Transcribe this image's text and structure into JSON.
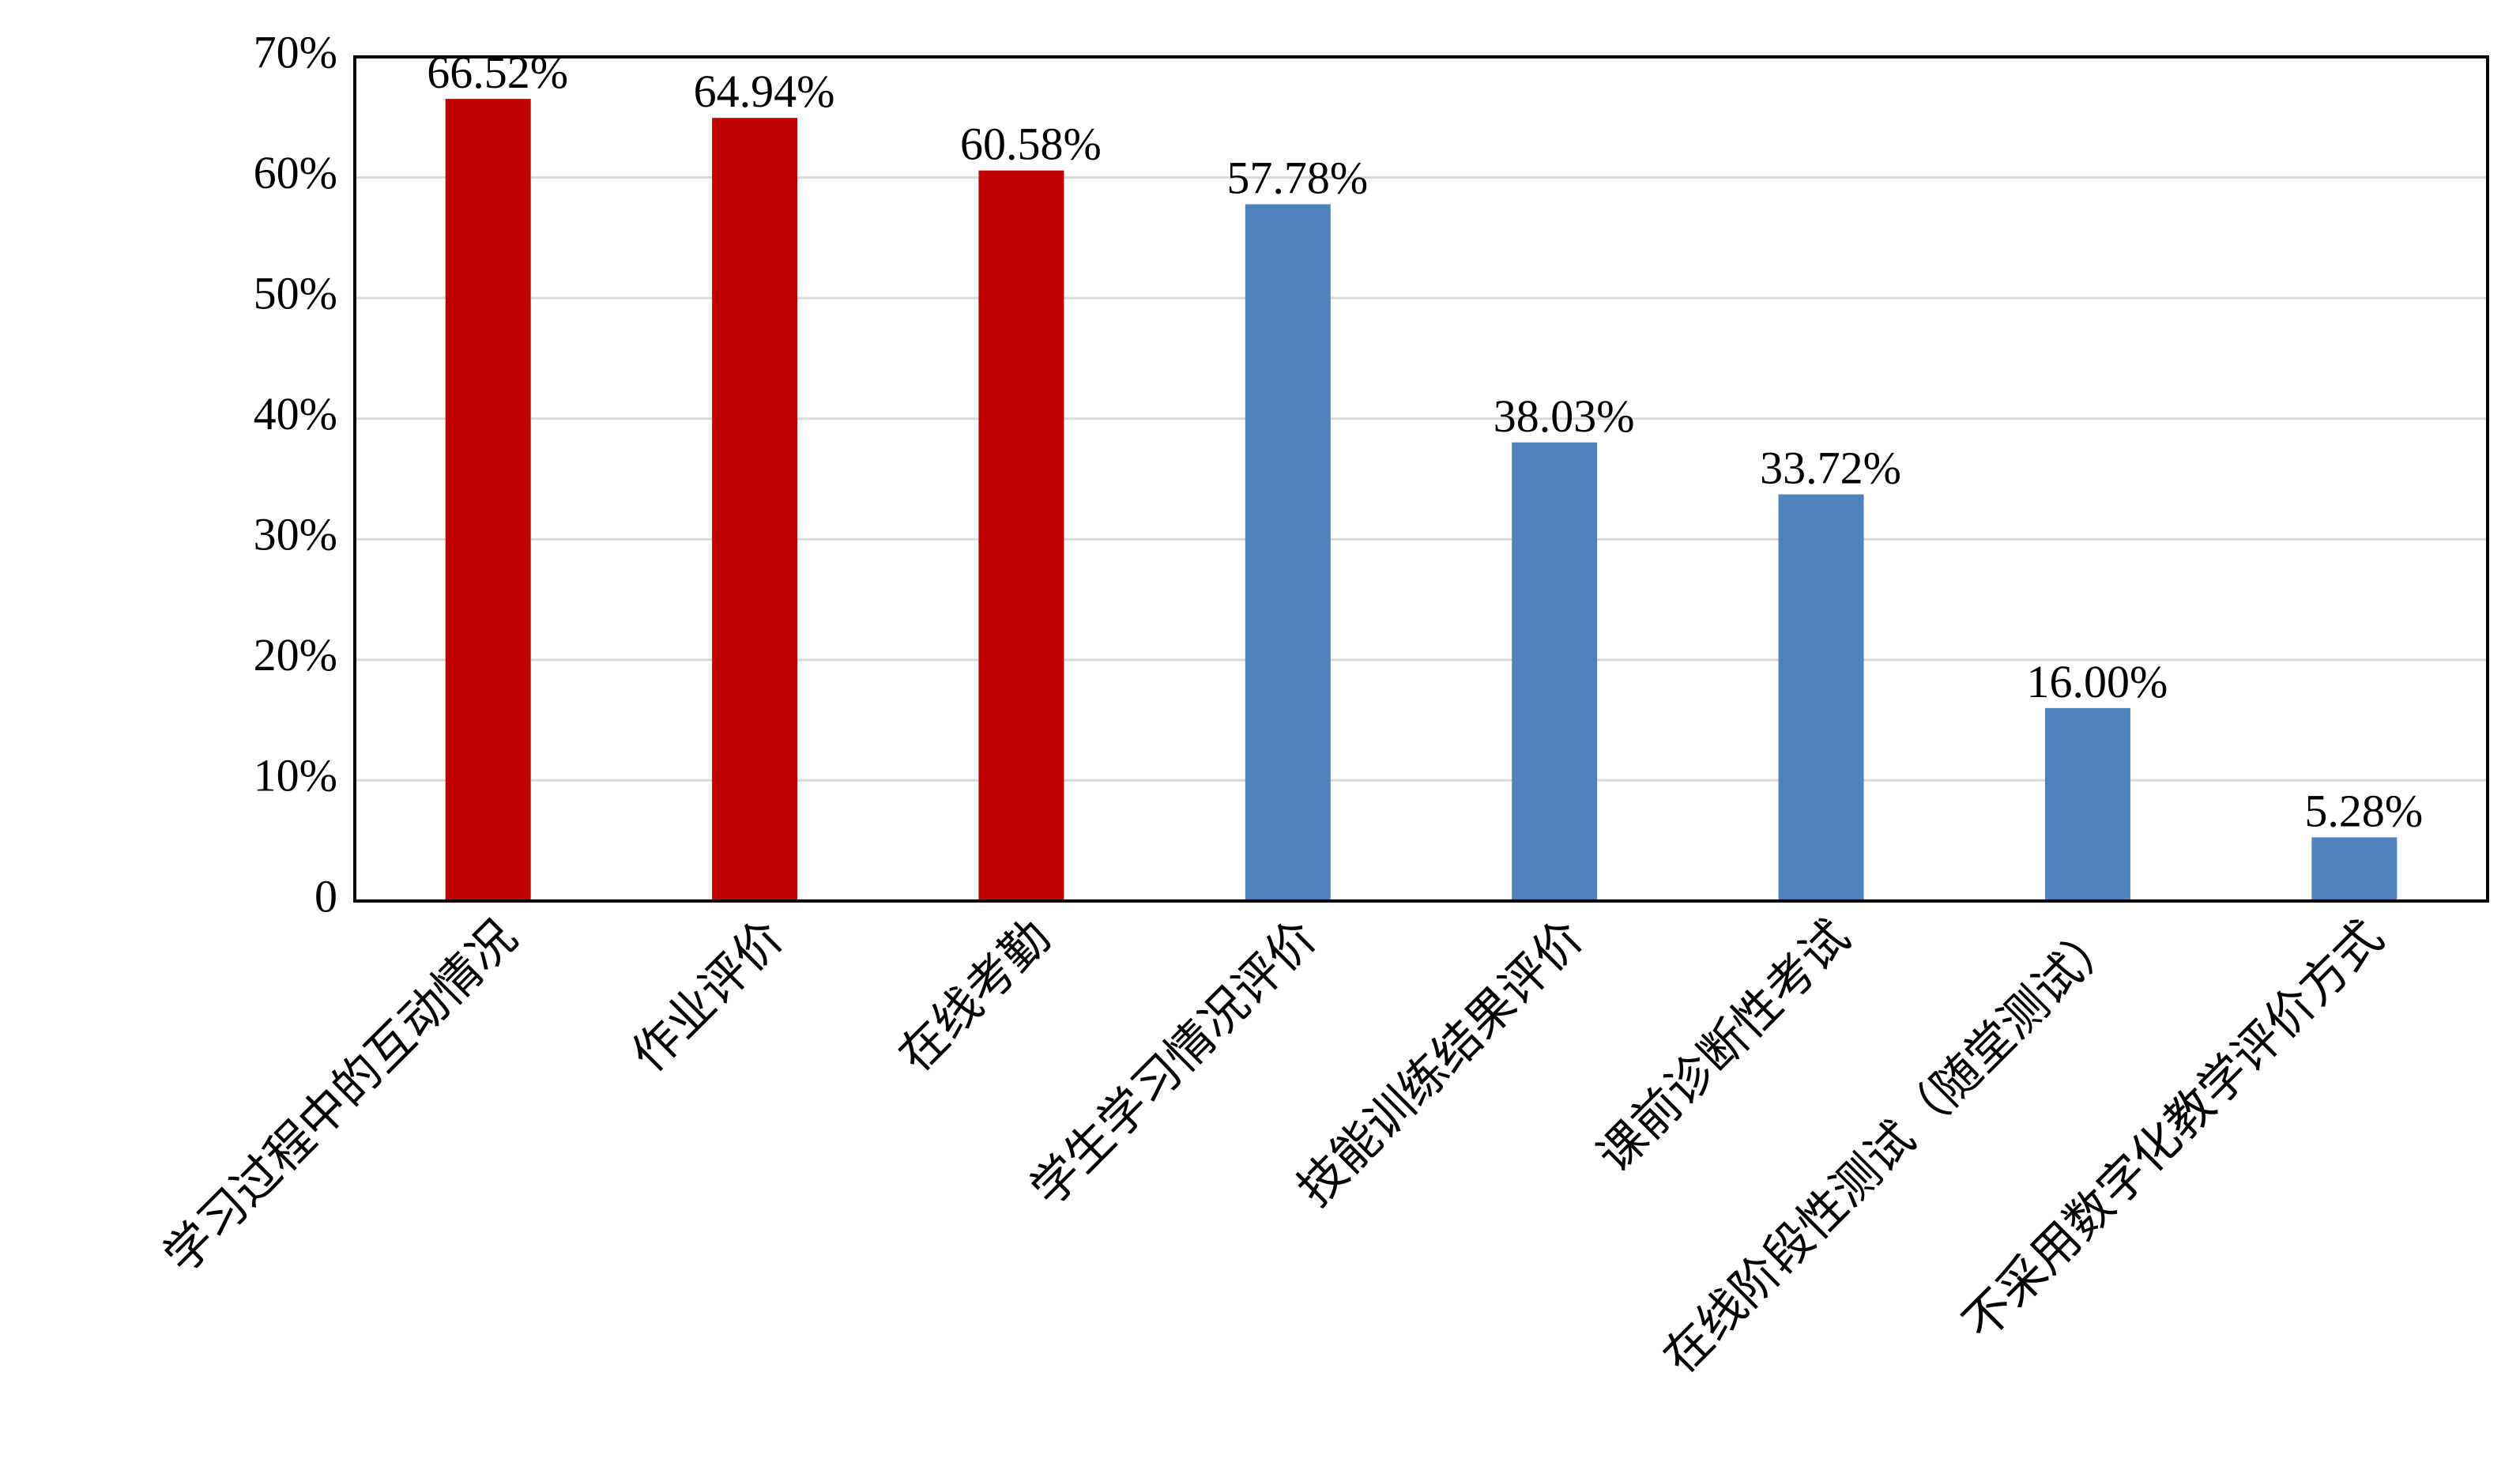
{
  "chart_data": {
    "type": "bar",
    "categories": [
      "学习过程中的互动情况",
      "作业评价",
      "在线考勤",
      "学生学习情况评价",
      "技能训练结果评价",
      "课前诊断性考试",
      "在线阶段性测试（随堂测试）",
      "不采用数字化教学评价方式"
    ],
    "values": [
      66.52,
      64.94,
      60.58,
      57.78,
      38.03,
      33.72,
      16.0,
      5.28
    ],
    "value_labels": [
      "66.52%",
      "64.94%",
      "60.58%",
      "57.78%",
      "38.03%",
      "33.72%",
      "16.00%",
      "5.28%"
    ],
    "colors": [
      "#c00000",
      "#c00000",
      "#c00000",
      "#4f81bd",
      "#4f81bd",
      "#4f81bd",
      "#4f81bd",
      "#4f81bd"
    ],
    "ylim": [
      0,
      70
    ],
    "yticks": [
      0,
      {
        "value": 10,
        "label": "10%"
      },
      {
        "value": 20,
        "label": "20%"
      },
      {
        "value": 30,
        "label": "30%"
      },
      {
        "value": 40,
        "label": "40%"
      },
      {
        "value": 50,
        "label": "50%"
      },
      {
        "value": 60,
        "label": "60%"
      },
      {
        "value": 70,
        "label": "70%"
      }
    ],
    "grid": true
  }
}
